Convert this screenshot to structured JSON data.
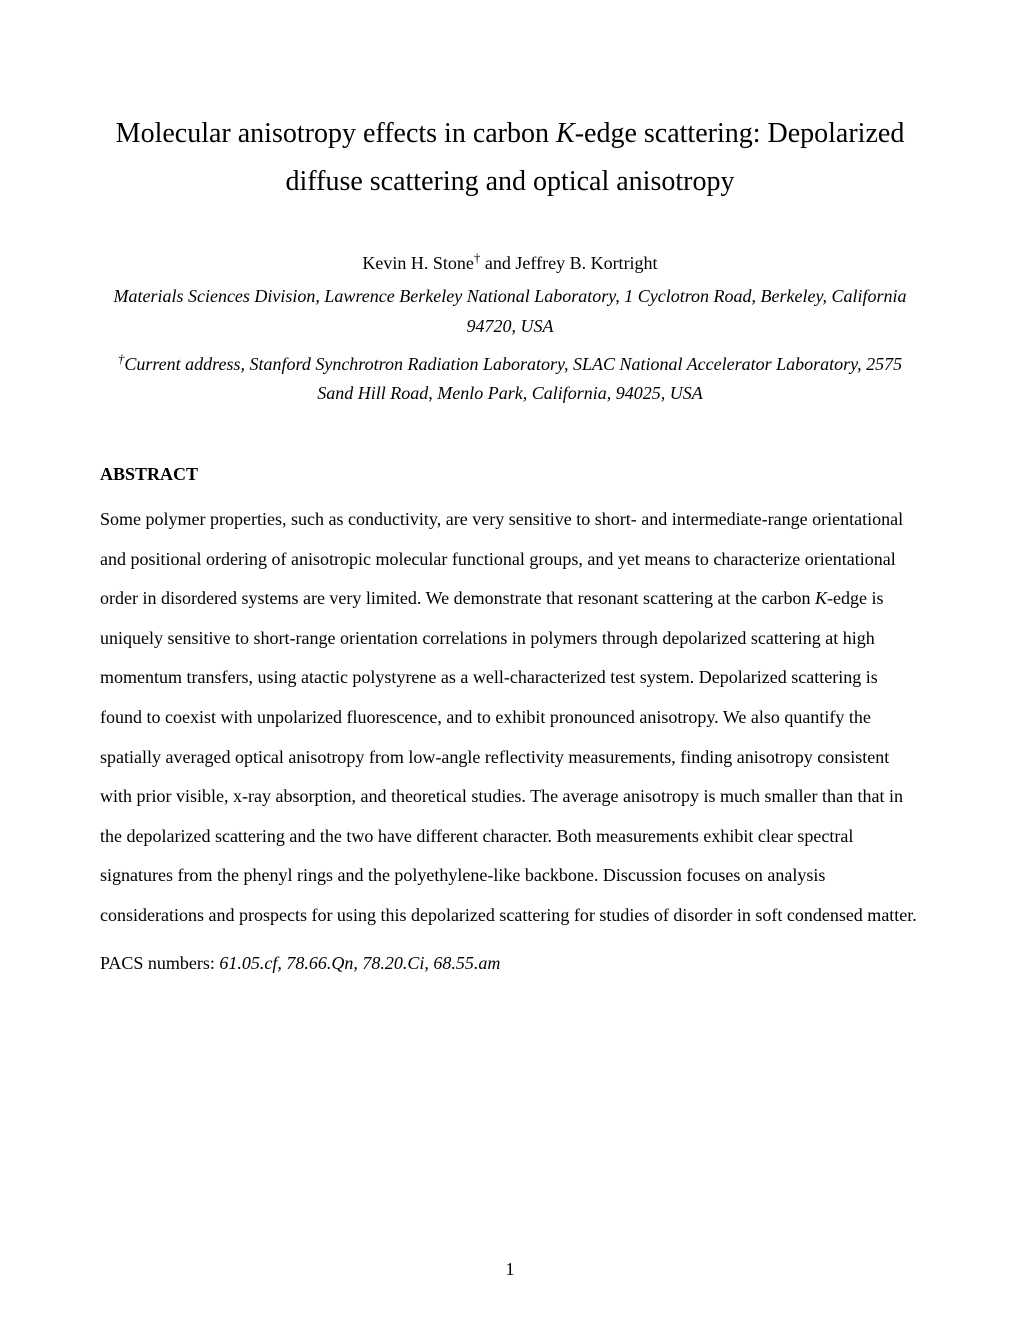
{
  "title": {
    "prefix": "Molecular anisotropy effects in carbon ",
    "italic": "K",
    "suffix": "-edge scattering:  Depolarized diffuse scattering and optical anisotropy"
  },
  "authors": {
    "author1_name": "Kevin H. Stone",
    "author1_mark": "†",
    "connector": " and ",
    "author2_name": "Jeffrey B. Kortright"
  },
  "affiliation1": "Materials Sciences Division, Lawrence Berkeley National Laboratory, 1 Cyclotron Road, Berkeley, California 94720, USA",
  "affiliation2_mark": "†",
  "affiliation2": "Current address, Stanford Synchrotron Radiation Laboratory, SLAC National Accelerator Laboratory, 2575 Sand Hill Road, Menlo Park, California, 94025, USA",
  "abstract_heading": "ABSTRACT",
  "abstract_body": {
    "part1": "Some polymer properties, such as conductivity, are very sensitive to short- and intermediate-range orientational and positional ordering of anisotropic molecular functional groups, and yet means to characterize orientational order in disordered systems are very limited.  We demonstrate that resonant scattering at the carbon ",
    "italic1": "K",
    "part2": "-edge is uniquely sensitive to short-range orientation correlations in polymers through depolarized scattering at high momentum transfers, using atactic polystyrene as a well-characterized test system.  Depolarized scattering is found to coexist with unpolarized fluorescence, and to exhibit pronounced anisotropy.  We also quantify the spatially averaged optical anisotropy from low-angle reflectivity measurements, finding anisotropy consistent with prior visible, x-ray absorption, and theoretical studies.  The average anisotropy is much smaller than that in the depolarized scattering and the two have different character.  Both measurements exhibit clear spectral signatures from the phenyl rings and the polyethylene-like backbone.   Discussion focuses on analysis considerations and prospects for using this depolarized scattering for studies of disorder in soft condensed matter."
  },
  "pacs": {
    "label": "PACS numbers:  ",
    "numbers": "61.05.cf, 78.66.Qn, 78.20.Ci, 68.55.am"
  },
  "page_number": "1"
}
